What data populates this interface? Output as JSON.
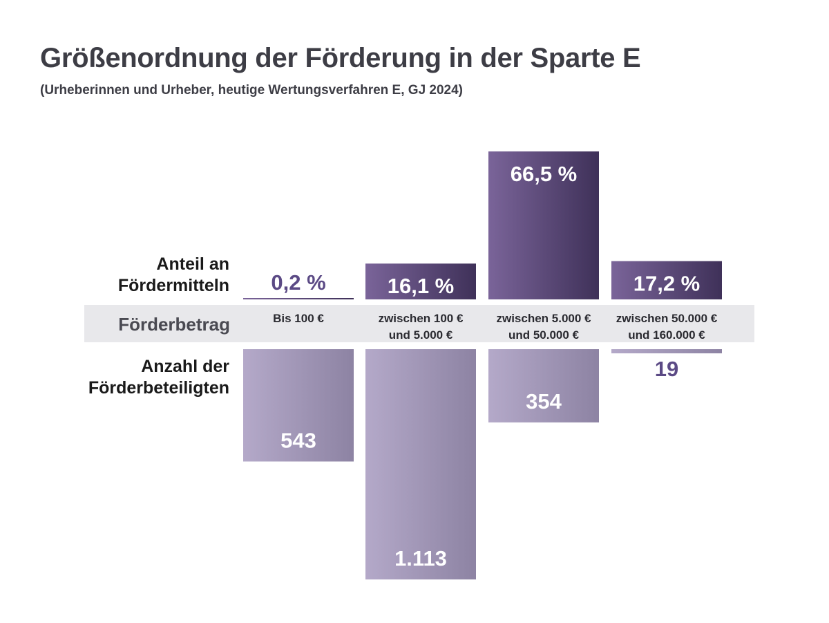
{
  "title": "Größenordnung der Förderung in der Sparte E",
  "subtitle": "(Urheberinnen und Urheber, heutige Wertungsverfahren E, GJ 2024)",
  "labels": {
    "share": [
      "Anteil an",
      "Fördermitteln"
    ],
    "amount": "Förderbetrag",
    "count": [
      "Anzahl der",
      "Förderbeteiligten"
    ]
  },
  "colors": {
    "share_bar_light": "#7a6499",
    "share_bar_dark": "#3f3159",
    "count_bar_light": "#b4a9c9",
    "count_bar_dark": "#8d83a3",
    "band": "#e8e8eb",
    "accent_text": "#5b4a85"
  },
  "chart_data": {
    "type": "bar",
    "categories": [
      [
        "Bis 100 €"
      ],
      [
        "zwischen 100 €",
        "und 5.000 €"
      ],
      [
        "zwischen 5.000 €",
        "und 50.000 €"
      ],
      [
        "zwischen 50.000 €",
        "und 160.000 €"
      ]
    ],
    "series": [
      {
        "name": "Anteil an Fördermitteln",
        "unit": "%",
        "values": [
          0.2,
          16.1,
          66.5,
          17.2
        ],
        "labels": [
          "0,2 %",
          "16,1 %",
          "66,5 %",
          "17,2 %"
        ]
      },
      {
        "name": "Anzahl der Förderbeteiligten",
        "values": [
          543,
          1113,
          354,
          19
        ],
        "labels": [
          "543",
          "1.113",
          "354",
          "19"
        ]
      }
    ]
  }
}
